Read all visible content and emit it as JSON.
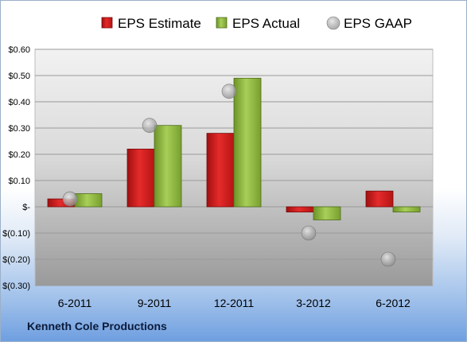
{
  "company": "Kenneth Cole Productions",
  "chart_data": {
    "type": "bar",
    "categories": [
      "6-2011",
      "9-2011",
      "12-2011",
      "3-2012",
      "6-2012"
    ],
    "series": [
      {
        "name": "EPS Estimate",
        "type": "bar",
        "color": "#d01f1f",
        "values": [
          0.03,
          0.22,
          0.28,
          -0.02,
          0.06
        ]
      },
      {
        "name": "EPS Actual",
        "type": "bar",
        "color": "#8fbc3a",
        "values": [
          0.05,
          0.31,
          0.49,
          -0.05,
          -0.02
        ]
      },
      {
        "name": "EPS GAAP",
        "type": "scatter",
        "color": "#a9a9a9",
        "values": [
          0.03,
          0.31,
          0.44,
          -0.1,
          -0.2
        ]
      }
    ],
    "ylim": [
      -0.3,
      0.6
    ],
    "yticks": [
      0.6,
      0.5,
      0.4,
      0.3,
      0.2,
      0.1,
      0.0,
      -0.1,
      -0.2,
      -0.3
    ],
    "ytick_labels": [
      "$0.60",
      "$0.50",
      "$0.40",
      "$0.30",
      "$0.20",
      "$0.10",
      "$-",
      "$(0.10)",
      "$(0.20)",
      "$(0.30)"
    ],
    "legend_position": "top",
    "grid": true
  }
}
